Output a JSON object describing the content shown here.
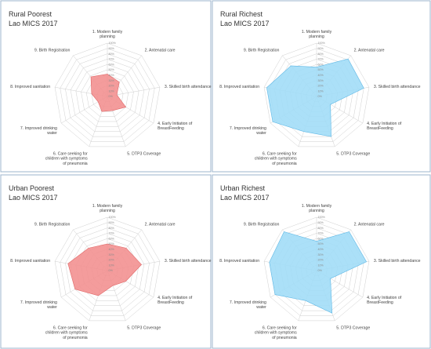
{
  "chart_data": [
    {
      "type": "radar",
      "title": "Rural Poorest",
      "subtitle": "Lao MICS 2017",
      "axes": [
        "1. Modern family planning",
        "2. Antenatal care",
        "3. Skilled birth attendance",
        "4. Early Initiation of BreastFeeding",
        "5. DTP3 Coverage",
        "6. Care seeking for children with symptoms of pneumonia",
        "7. Improved drinking water",
        "8. Improved sanitation",
        "9. Birth Registration"
      ],
      "ticks": [
        "0%",
        "10%",
        "20%",
        "30%",
        "40%",
        "50%",
        "60%",
        "70%",
        "80%",
        "90%",
        "100%"
      ],
      "values": [
        42,
        35,
        18,
        40,
        28,
        30,
        20,
        30,
        48
      ],
      "fill": "#f28e8e",
      "stroke": "#e06666"
    },
    {
      "type": "radar",
      "title": "Rural Richest",
      "subtitle": "Lao MICS 2017",
      "axes": [
        "1. Modern family planning",
        "2. Antenatal care",
        "3. Skilled birth attendance",
        "4. Early Initiation of BreastFeeding",
        "5. DTP3 Coverage",
        "6. Care seeking for children with symptoms of pneumonia",
        "7. Improved drinking water",
        "8. Improved sanitation",
        "9. Birth Registration"
      ],
      "ticks": [
        "0%",
        "10%",
        "20%",
        "30%",
        "40%",
        "50%",
        "60%",
        "70%",
        "80%",
        "90%",
        "100%"
      ],
      "values": [
        55,
        92,
        90,
        30,
        80,
        70,
        95,
        95,
        75
      ],
      "fill": "#9fdcf7",
      "stroke": "#5fb8e6"
    },
    {
      "type": "radar",
      "title": "Urban Poorest",
      "subtitle": "Lao MICS 2017",
      "axes": [
        "1. Modern family planning",
        "2. Antenatal care",
        "3. Skilled birth attendance",
        "4. Early Initiation of BreastFeeding",
        "5. DTP3 Coverage",
        "6. Care seeking for children with symptoms of pneumonia",
        "7. Improved drinking water",
        "8. Improved sanitation",
        "9. Birth Registration"
      ],
      "ticks": [
        "0%",
        "10%",
        "20%",
        "30%",
        "40%",
        "50%",
        "60%",
        "70%",
        "80%",
        "90%",
        "100%"
      ],
      "values": [
        50,
        55,
        65,
        40,
        30,
        50,
        70,
        75,
        55
      ],
      "fill": "#f28e8e",
      "stroke": "#e06666"
    },
    {
      "type": "radar",
      "title": "Urban Richest",
      "subtitle": "Lao MICS 2017",
      "axes": [
        "1. Modern family planning",
        "2. Antenatal care",
        "3. Skilled birth attendance",
        "4. Early Initiation of BreastFeeding",
        "5. DTP3 Coverage",
        "6. Care seeking for children with symptoms of pneumonia",
        "7. Improved drinking water",
        "8. Improved sanitation",
        "9. Birth Registration"
      ],
      "ticks": [
        "0%",
        "10%",
        "20%",
        "30%",
        "40%",
        "50%",
        "60%",
        "70%",
        "80%",
        "90%",
        "100%"
      ],
      "values": [
        55,
        95,
        95,
        30,
        85,
        60,
        90,
        90,
        95
      ],
      "fill": "#9fdcf7",
      "stroke": "#5fb8e6"
    }
  ]
}
